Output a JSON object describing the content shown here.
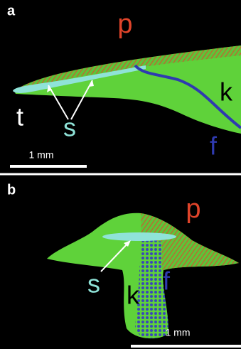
{
  "panel_a": {
    "label": "a",
    "periderm": "p",
    "tip": "t",
    "stripe": "s",
    "body": "k",
    "front": "f",
    "scale_bar": "1 mm"
  },
  "panel_b": {
    "label": "b",
    "periderm": "p",
    "stripe": "s",
    "body": "k",
    "front": "f",
    "scale_bar": "1 mm"
  }
}
